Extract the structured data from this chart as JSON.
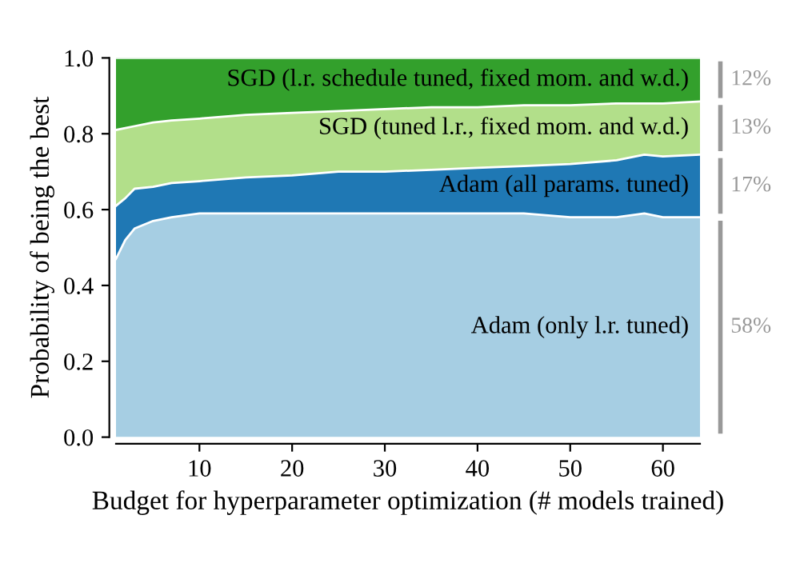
{
  "chart_data": {
    "type": "area",
    "stacked": true,
    "xlabel": "Budget for hyperparameter optimization (# models trained)",
    "ylabel": "Probability of being the best",
    "x": [
      1,
      2,
      3,
      5,
      7,
      10,
      15,
      20,
      25,
      30,
      35,
      40,
      45,
      50,
      55,
      58,
      60,
      64
    ],
    "series": [
      {
        "name": "Adam (only l.r. tuned)",
        "color": "#a6cee3",
        "values": [
          0.47,
          0.52,
          0.55,
          0.57,
          0.58,
          0.59,
          0.59,
          0.59,
          0.59,
          0.59,
          0.59,
          0.59,
          0.59,
          0.58,
          0.58,
          0.59,
          0.58,
          0.58
        ]
      },
      {
        "name": "Adam (all params. tuned)",
        "color": "#1f78b4",
        "values": [
          0.14,
          0.11,
          0.105,
          0.09,
          0.09,
          0.085,
          0.095,
          0.1,
          0.11,
          0.11,
          0.115,
          0.12,
          0.125,
          0.14,
          0.15,
          0.155,
          0.16,
          0.165
        ]
      },
      {
        "name": "SGD (tuned l.r., fixed mom. and w.d.)",
        "color": "#b2df8a",
        "values": [
          0.2,
          0.185,
          0.165,
          0.17,
          0.165,
          0.165,
          0.165,
          0.165,
          0.16,
          0.165,
          0.165,
          0.16,
          0.16,
          0.155,
          0.15,
          0.135,
          0.14,
          0.14
        ]
      },
      {
        "name": "SGD (l.r. schedule tuned, fixed mom. and w.d.)",
        "color": "#33a02c",
        "values": [
          0.19,
          0.185,
          0.18,
          0.17,
          0.165,
          0.16,
          0.15,
          0.145,
          0.14,
          0.135,
          0.13,
          0.13,
          0.125,
          0.125,
          0.12,
          0.12,
          0.12,
          0.115
        ]
      }
    ],
    "annotations": [
      "58%",
      "17%",
      "13%",
      "12%"
    ],
    "xlim": [
      1,
      64
    ],
    "xticks": [
      10,
      20,
      30,
      40,
      50,
      60
    ],
    "ylim": [
      0,
      1
    ],
    "yticks": [
      {
        "value": 0,
        "label": "0.0"
      },
      {
        "value": 0.2,
        "label": "0.2"
      },
      {
        "value": 0.4,
        "label": "0.4"
      },
      {
        "value": 0.6,
        "label": "0.6"
      },
      {
        "value": 0.8,
        "label": "0.8"
      },
      {
        "value": 1.0,
        "label": "1.0"
      }
    ],
    "grid": false
  }
}
